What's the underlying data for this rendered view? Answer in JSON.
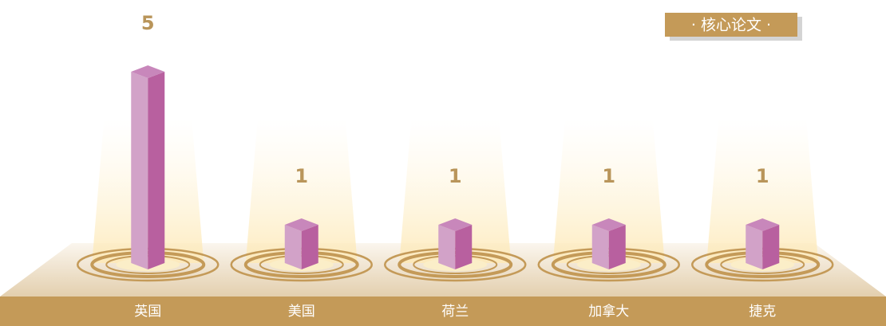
{
  "chart_data": {
    "type": "bar",
    "title": "· 核心论文 ·",
    "categories": [
      "英国",
      "美国",
      "荷兰",
      "加拿大",
      "捷克"
    ],
    "values": [
      5,
      1,
      1,
      1,
      1
    ]
  }
}
